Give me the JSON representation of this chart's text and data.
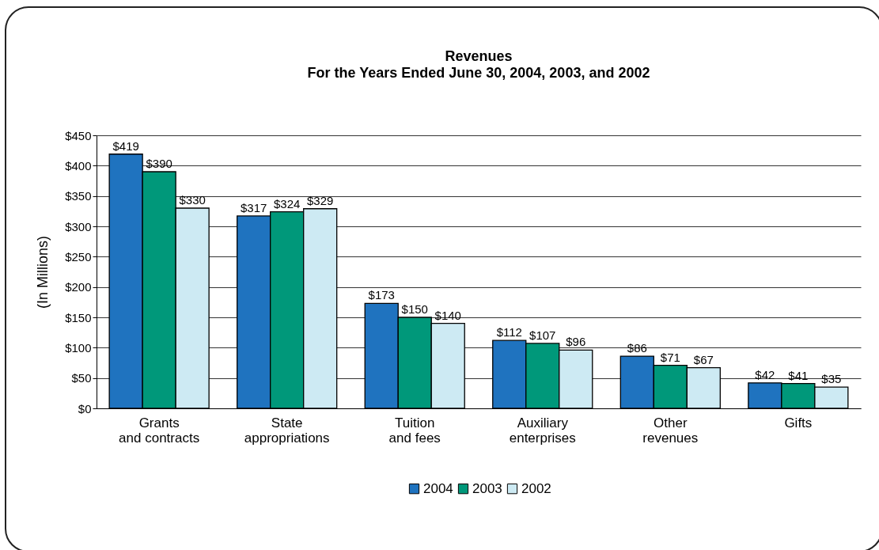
{
  "chart_data": {
    "type": "bar",
    "title": "Revenues",
    "subtitle": "For the Years Ended June 30, 2004, 2003, and 2002",
    "ylabel": "(In Millions)",
    "categories": [
      "Grants and contracts",
      "State appropriations",
      "Tuition and fees",
      "Auxiliary enterprises",
      "Other revenues",
      "Gifts"
    ],
    "series": [
      {
        "name": "2004",
        "color": "#1f73bf",
        "values": [
          419,
          317,
          173,
          112,
          86,
          42
        ],
        "value_labels": [
          "$419",
          "$317",
          "$173",
          "$112",
          "$86",
          "$42"
        ]
      },
      {
        "name": "2003",
        "color": "#00987a",
        "values": [
          390,
          324,
          150,
          107,
          71,
          41
        ],
        "value_labels": [
          "$390",
          "$324",
          "$150",
          "$107",
          "$71",
          "$41"
        ]
      },
      {
        "name": "2002",
        "color": "#cdeaf3",
        "values": [
          330,
          329,
          140,
          96,
          67,
          35
        ],
        "value_labels": [
          "$330",
          "$329",
          "$140",
          "$96",
          "$67",
          "$35"
        ]
      }
    ],
    "ylim": [
      0,
      450
    ],
    "yticks": [
      {
        "value": 0,
        "label": "$0"
      },
      {
        "value": 50,
        "label": "$50"
      },
      {
        "value": 100,
        "label": "$100"
      },
      {
        "value": 150,
        "label": "$150"
      },
      {
        "value": 200,
        "label": "$200"
      },
      {
        "value": 250,
        "label": "$250"
      },
      {
        "value": 300,
        "label": "$300"
      },
      {
        "value": 350,
        "label": "$350"
      },
      {
        "value": 400,
        "label": "$400"
      },
      {
        "value": 450,
        "label": "$450"
      }
    ],
    "grid": "y",
    "legend": "bottom"
  }
}
